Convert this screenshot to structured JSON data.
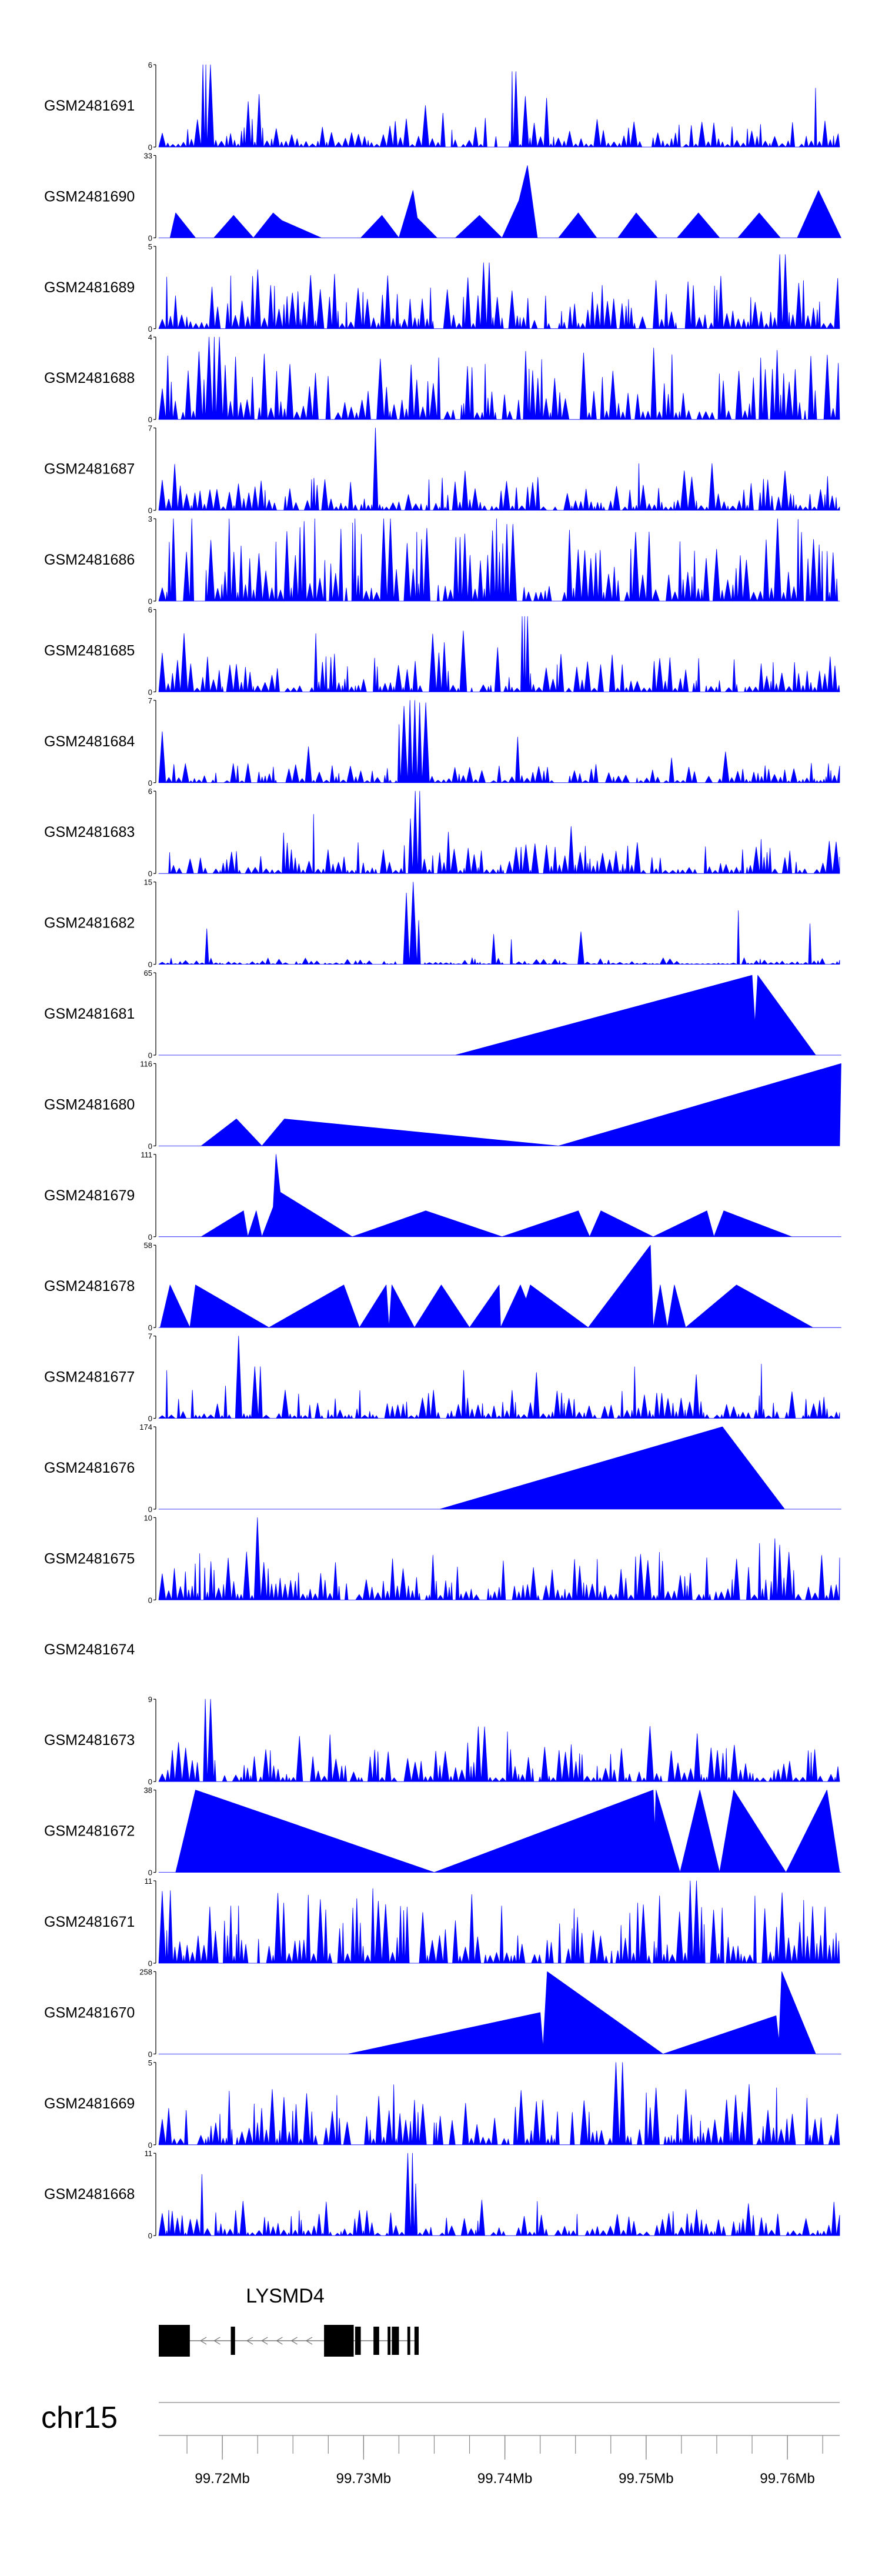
{
  "chart_data": {
    "type": "area",
    "chromosome": "chr15",
    "x_range": [
      99.7155,
      99.7637
    ],
    "x_ticks": [
      {
        "value": 99.72,
        "label": "99.72Mb"
      },
      {
        "value": 99.73,
        "label": "99.73Mb"
      },
      {
        "value": 99.74,
        "label": "99.74Mb"
      },
      {
        "value": 99.75,
        "label": "99.75Mb"
      },
      {
        "value": 99.76,
        "label": "99.76Mb"
      }
    ],
    "fill_color": "#0000ff",
    "tracks": [
      {
        "name": "GSM2481691",
        "ymax": 6,
        "ytop_label": "6",
        "ybottom_label": "0",
        "mode": "dense",
        "seed": 1691,
        "base": 0.13,
        "peaks": [
          [
            99.7188,
            6
          ],
          [
            99.7406,
            5.5
          ]
        ]
      },
      {
        "name": "GSM2481690",
        "ymax": 33,
        "ytop_label": "33",
        "ybottom_label": "0",
        "mode": "sparse",
        "points": [
          [
            99.7155,
            0
          ],
          [
            99.7163,
            0
          ],
          [
            99.7167,
            10
          ],
          [
            99.7181,
            0
          ],
          [
            99.7194,
            0
          ],
          [
            99.7208,
            9
          ],
          [
            99.7222,
            0
          ],
          [
            99.7236,
            10
          ],
          [
            99.7242,
            7
          ],
          [
            99.727,
            0
          ],
          [
            99.7298,
            0
          ],
          [
            99.7313,
            9
          ],
          [
            99.7325,
            0
          ],
          [
            99.7335,
            19
          ],
          [
            99.7338,
            8
          ],
          [
            99.7352,
            0
          ],
          [
            99.7365,
            0
          ],
          [
            99.7382,
            9
          ],
          [
            99.7398,
            0
          ],
          [
            99.741,
            15
          ],
          [
            99.7416,
            29
          ],
          [
            99.7423,
            0
          ],
          [
            99.7438,
            0
          ],
          [
            99.7452,
            10
          ],
          [
            99.7465,
            0
          ],
          [
            99.748,
            0
          ],
          [
            99.7493,
            10
          ],
          [
            99.7508,
            0
          ],
          [
            99.7522,
            0
          ],
          [
            99.7537,
            10
          ],
          [
            99.7552,
            0
          ],
          [
            99.7565,
            0
          ],
          [
            99.758,
            10
          ],
          [
            99.7595,
            0
          ],
          [
            99.7607,
            0
          ],
          [
            99.7622,
            19
          ],
          [
            99.7638,
            0
          ]
        ]
      },
      {
        "name": "GSM2481689",
        "ymax": 5,
        "ytop_label": "5",
        "ybottom_label": "0",
        "mode": "dense",
        "seed": 1689,
        "base": 0.25,
        "peaks": [
          [
            99.7388,
            4
          ],
          [
            99.7597,
            4.5
          ]
        ]
      },
      {
        "name": "GSM2481688",
        "ymax": 4,
        "ytop_label": "4",
        "ybottom_label": "0",
        "mode": "dense",
        "seed": 1688,
        "base": 0.33,
        "peaks": [
          [
            99.7195,
            4
          ]
        ]
      },
      {
        "name": "GSM2481687",
        "ymax": 7,
        "ytop_label": "7",
        "ybottom_label": "0",
        "mode": "dense",
        "seed": 1687,
        "base": 0.16,
        "peaks": [
          [
            99.7308,
            7
          ]
        ]
      },
      {
        "name": "GSM2481686",
        "ymax": 3,
        "ytop_label": "3",
        "ybottom_label": "0",
        "mode": "dense",
        "seed": 1686,
        "base": 0.42,
        "peaks": [
          [
            99.7316,
            3
          ],
          [
            99.7404,
            2.8
          ]
        ]
      },
      {
        "name": "GSM2481685",
        "ymax": 6,
        "ytop_label": "6",
        "ybottom_label": "0",
        "mode": "dense",
        "seed": 1685,
        "base": 0.18,
        "peaks": [
          [
            99.7414,
            5.5
          ],
          [
            99.7357,
            3.6
          ]
        ]
      },
      {
        "name": "GSM2481684",
        "ymax": 7,
        "ytop_label": "7",
        "ybottom_label": "0",
        "mode": "dense",
        "seed": 1684,
        "base": 0.09,
        "peaks": [
          [
            99.7332,
            6.5
          ],
          [
            99.7336,
            7
          ],
          [
            99.734,
            6.8
          ],
          [
            99.7344,
            6.2
          ]
        ]
      },
      {
        "name": "GSM2481683",
        "ymax": 6,
        "ytop_label": "6",
        "ybottom_label": "0",
        "mode": "dense",
        "seed": 1683,
        "base": 0.15,
        "peaks": [
          [
            99.7338,
            6
          ],
          [
            99.7334,
            4
          ]
        ]
      },
      {
        "name": "GSM2481682",
        "ymax": 15,
        "ytop_label": "15",
        "ybottom_label": "0",
        "mode": "dense",
        "seed": 1682,
        "base": 0.03,
        "peaks": [
          [
            99.7332,
            13
          ],
          [
            99.7335,
            15
          ],
          [
            99.7338,
            8
          ]
        ]
      },
      {
        "name": "GSM2481681",
        "ymax": 65,
        "ytop_label": "65",
        "ybottom_label": "0",
        "mode": "sparse",
        "points": [
          [
            99.7155,
            0
          ],
          [
            99.7365,
            0
          ],
          [
            99.7575,
            63
          ],
          [
            99.7577,
            25
          ],
          [
            99.7579,
            63
          ],
          [
            99.762,
            0
          ],
          [
            99.7638,
            0
          ]
        ]
      },
      {
        "name": "GSM2481680",
        "ymax": 116,
        "ytop_label": "116",
        "ybottom_label": "0",
        "mode": "sparse",
        "points": [
          [
            99.7155,
            0
          ],
          [
            99.7185,
            0
          ],
          [
            99.721,
            38
          ],
          [
            99.7228,
            0
          ],
          [
            99.7244,
            38
          ],
          [
            99.7438,
            0
          ],
          [
            99.7638,
            116
          ]
        ]
      },
      {
        "name": "GSM2481679",
        "ymax": 111,
        "ytop_label": "111",
        "ybottom_label": "0",
        "mode": "sparse",
        "points": [
          [
            99.7155,
            0
          ],
          [
            99.7185,
            0
          ],
          [
            99.7215,
            35
          ],
          [
            99.7218,
            0
          ],
          [
            99.7224,
            35
          ],
          [
            99.7228,
            0
          ],
          [
            99.7236,
            40
          ],
          [
            99.7238,
            111
          ],
          [
            99.7241,
            60
          ],
          [
            99.7292,
            0
          ],
          [
            99.7344,
            35
          ],
          [
            99.7398,
            0
          ],
          [
            99.7452,
            35
          ],
          [
            99.746,
            0
          ],
          [
            99.7468,
            35
          ],
          [
            99.7505,
            0
          ],
          [
            99.7543,
            35
          ],
          [
            99.7548,
            0
          ],
          [
            99.7555,
            35
          ],
          [
            99.7603,
            0
          ],
          [
            99.7638,
            0
          ]
        ]
      },
      {
        "name": "GSM2481678",
        "ymax": 58,
        "ytop_label": "58",
        "ybottom_label": "0",
        "mode": "sparse",
        "points": [
          [
            99.7155,
            0
          ],
          [
            99.7156,
            0
          ],
          [
            99.7163,
            30
          ],
          [
            99.7177,
            0
          ],
          [
            99.7181,
            30
          ],
          [
            99.7233,
            0
          ],
          [
            99.7286,
            30
          ],
          [
            99.7297,
            0
          ],
          [
            99.7316,
            30
          ],
          [
            99.7318,
            0
          ],
          [
            99.732,
            30
          ],
          [
            99.7336,
            0
          ],
          [
            99.7355,
            30
          ],
          [
            99.7375,
            0
          ],
          [
            99.7396,
            30
          ],
          [
            99.7397,
            0
          ],
          [
            99.7411,
            30
          ],
          [
            99.7415,
            20
          ],
          [
            99.7418,
            30
          ],
          [
            99.7459,
            0
          ],
          [
            99.7503,
            58
          ],
          [
            99.7505,
            0
          ],
          [
            99.751,
            30
          ],
          [
            99.7515,
            0
          ],
          [
            99.752,
            30
          ],
          [
            99.7528,
            0
          ],
          [
            99.7564,
            30
          ],
          [
            99.7618,
            0
          ],
          [
            99.7638,
            0
          ]
        ]
      },
      {
        "name": "GSM2481677",
        "ymax": 7,
        "ytop_label": "7",
        "ybottom_label": "0",
        "mode": "dense",
        "seed": 1677,
        "base": 0.13,
        "peaks": [
          [
            99.7211,
            7
          ],
          [
            99.7225,
            4.4
          ]
        ]
      },
      {
        "name": "GSM2481676",
        "ymax": 174,
        "ytop_label": "174",
        "ybottom_label": "0",
        "mode": "sparse",
        "points": [
          [
            99.7155,
            0
          ],
          [
            99.7354,
            0
          ],
          [
            99.7554,
            174
          ],
          [
            99.7598,
            0
          ],
          [
            99.7638,
            0
          ]
        ]
      },
      {
        "name": "GSM2481675",
        "ymax": 10,
        "ytop_label": "10",
        "ybottom_label": "0",
        "mode": "dense",
        "seed": 1675,
        "base": 0.22,
        "peaks": [
          [
            99.7225,
            10
          ]
        ]
      },
      {
        "name": "GSM2481674",
        "mode": "empty"
      },
      {
        "name": "GSM2481673",
        "ymax": 9,
        "ytop_label": "9",
        "ybottom_label": "0",
        "mode": "dense",
        "seed": 1673,
        "base": 0.18,
        "peaks": [
          [
            99.7189,
            9
          ],
          [
            99.7383,
            6
          ]
        ]
      },
      {
        "name": "GSM2481672",
        "ymax": 38,
        "ytop_label": "38",
        "ybottom_label": "0",
        "mode": "sparse",
        "points": [
          [
            99.7155,
            0
          ],
          [
            99.7167,
            0
          ],
          [
            99.7181,
            38
          ],
          [
            99.735,
            0
          ],
          [
            99.7505,
            38
          ],
          [
            99.7506,
            20
          ],
          [
            99.7507,
            38
          ],
          [
            99.7524,
            0
          ],
          [
            99.7538,
            38
          ],
          [
            99.7552,
            0
          ],
          [
            99.7562,
            38
          ],
          [
            99.7599,
            0
          ],
          [
            99.7628,
            38
          ],
          [
            99.7637,
            0
          ],
          [
            99.7638,
            0
          ]
        ]
      },
      {
        "name": "GSM2481671",
        "ymax": 11,
        "ytop_label": "11",
        "ybottom_label": "0",
        "mode": "dense",
        "seed": 1671,
        "base": 0.35,
        "peaks": [
          [
            99.7535,
            11
          ]
        ]
      },
      {
        "name": "GSM2481670",
        "ymax": 258,
        "ytop_label": "258",
        "ybottom_label": "0",
        "mode": "sparse",
        "points": [
          [
            99.7155,
            0
          ],
          [
            99.7289,
            0
          ],
          [
            99.7425,
            130
          ],
          [
            99.7427,
            20
          ],
          [
            99.743,
            258
          ],
          [
            99.7512,
            0
          ],
          [
            99.7592,
            120
          ],
          [
            99.7594,
            40
          ],
          [
            99.7596,
            258
          ],
          [
            99.762,
            0
          ],
          [
            99.7638,
            0
          ]
        ]
      },
      {
        "name": "GSM2481669",
        "ymax": 5,
        "ytop_label": "5",
        "ybottom_label": "0",
        "mode": "dense",
        "seed": 1669,
        "base": 0.28,
        "peaks": [
          [
            99.7482,
            5
          ]
        ]
      },
      {
        "name": "GSM2481668",
        "ymax": 11,
        "ytop_label": "11",
        "ybottom_label": "0",
        "mode": "dense",
        "seed": 1668,
        "base": 0.12,
        "peaks": [
          [
            99.7333,
            11
          ]
        ]
      }
    ],
    "gene": {
      "name": "LYSMD4",
      "strand": "-",
      "start": 99.7155,
      "end": 99.7339,
      "exons": [
        [
          99.7155,
          99.7177,
          "utr"
        ],
        [
          99.7206,
          99.7209,
          "cds"
        ],
        [
          99.7272,
          99.7293,
          "utr"
        ],
        [
          99.7294,
          99.7298,
          "cds"
        ],
        [
          99.7307,
          99.7311,
          "cds"
        ],
        [
          99.7317,
          99.7319,
          "cds"
        ],
        [
          99.732,
          99.7325,
          "cds"
        ],
        [
          99.7331,
          99.7333,
          "cds"
        ],
        [
          99.7336,
          99.7339,
          "cds"
        ]
      ]
    }
  }
}
